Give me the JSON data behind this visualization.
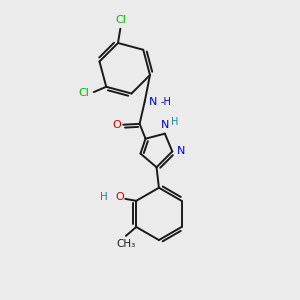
{
  "background_color": "#ebebeb",
  "bond_color": "#1a1a1a",
  "bond_width": 1.4,
  "atom_colors": {
    "C": "#1a1a1a",
    "N": "#0000cc",
    "O": "#cc0000",
    "Cl": "#00bb00",
    "H": "#1a8a8a"
  },
  "font_size": 8.0,
  "figsize": [
    3.0,
    3.0
  ],
  "dpi": 100
}
